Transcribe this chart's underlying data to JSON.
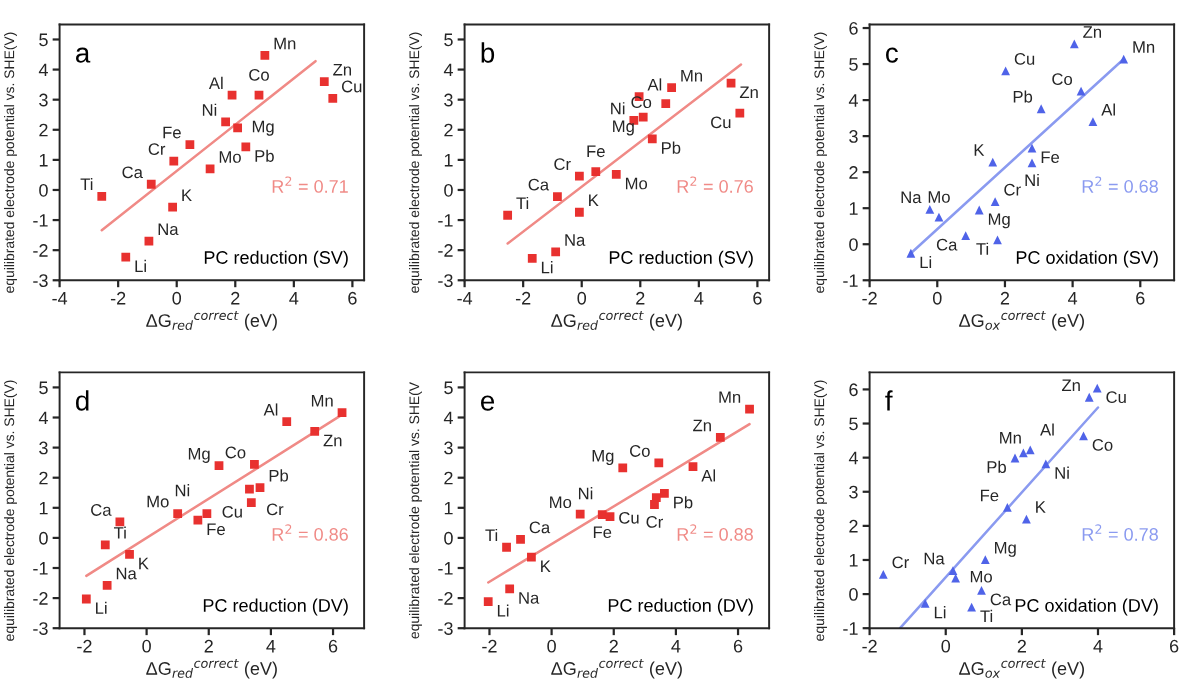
{
  "chart_data": [
    {
      "type": "scatter",
      "xlabel": "ΔG$_{red}$$^{correct}$ (eV)",
      "ylabel": "equilibrated electrode potential vs. SHE(V)",
      "xlim": [
        -4,
        6.4
      ],
      "xticks": [
        -4,
        -2,
        0,
        2,
        4,
        6
      ],
      "ylim": [
        -3,
        5.5
      ],
      "yticks": [
        -3,
        -2,
        -1,
        0,
        1,
        2,
        3,
        4,
        5
      ],
      "grid": false,
      "series": [
        {
          "type": "scatter",
          "marker": "square",
          "color": "#e8312f",
          "x": [
            3.01,
            1.89,
            2.81,
            5.04,
            5.33,
            1.67,
            2.08,
            0.45,
            2.36,
            -0.1,
            1.14,
            -0.87,
            -2.56,
            -0.14,
            -1.74,
            -0.95
          ],
          "values": [
            4.47,
            3.15,
            3.15,
            3.6,
            3.04,
            2.26,
            2.06,
            1.51,
            1.43,
            0.96,
            0.7,
            0.19,
            -0.21,
            -0.57,
            -2.23,
            -1.7
          ]
        },
        {
          "type": "line",
          "color": "#f08a86",
          "x": [
            -2.56,
            4.74
          ],
          "values": [
            -1.34,
            4.28
          ]
        }
      ],
      "annotations": [
        "a",
        "R$^{2}$ = 0.71",
        "PC reduction (SV)",
        {
          "text": "Mn",
          "x": 3.01,
          "y": 4.47
        },
        {
          "text": "Al",
          "x": 1.89,
          "y": 3.15
        },
        {
          "text": "Co",
          "x": 2.81,
          "y": 3.15
        },
        {
          "text": "Zn",
          "x": 5.04,
          "y": 3.6
        },
        {
          "text": "Cu",
          "x": 5.33,
          "y": 3.04
        },
        {
          "text": "Ni",
          "x": 1.67,
          "y": 2.26
        },
        {
          "text": "Mg",
          "x": 2.08,
          "y": 2.06
        },
        {
          "text": "Fe",
          "x": 0.45,
          "y": 1.51
        },
        {
          "text": "Pb",
          "x": 2.36,
          "y": 1.43
        },
        {
          "text": "Cr",
          "x": -0.1,
          "y": 0.96
        },
        {
          "text": "Mo",
          "x": 1.14,
          "y": 0.7
        },
        {
          "text": "Ca",
          "x": -0.87,
          "y": 0.19
        },
        {
          "text": "Ti",
          "x": -2.56,
          "y": -0.21
        },
        {
          "text": "K",
          "x": -0.14,
          "y": -0.57
        },
        {
          "text": "Li",
          "x": -1.74,
          "y": -2.23
        },
        {
          "text": "Na",
          "x": -0.95,
          "y": -1.7
        }
      ]
    },
    {
      "type": "scatter",
      "xlabel": "ΔG$_{red}$$^{correct}$ (eV)",
      "ylabel": "equilibrated electrode potential vs. SHE(V)",
      "xlim": [
        -4,
        6.4
      ],
      "xticks": [
        -4,
        -2,
        0,
        2,
        4,
        6
      ],
      "ylim": [
        -3,
        5.5
      ],
      "yticks": [
        -3,
        -2,
        -1,
        0,
        1,
        2,
        3,
        4,
        5
      ],
      "grid": false,
      "series": [
        {
          "type": "scatter",
          "marker": "square",
          "color": "#e8312f",
          "x": [
            -2.53,
            -0.83,
            -0.08,
            0.48,
            1.18,
            -0.08,
            -1.69,
            -0.89,
            1.96,
            3.07,
            2.87,
            1.78,
            2.1,
            2.41,
            5.1,
            5.4
          ],
          "values": [
            -0.84,
            -0.22,
            0.46,
            0.61,
            0.52,
            -0.74,
            -2.27,
            -2.06,
            3.1,
            3.4,
            2.87,
            2.31,
            2.42,
            1.7,
            3.55,
            2.55
          ]
        },
        {
          "type": "line",
          "color": "#f08a86",
          "x": [
            -2.53,
            5.44
          ],
          "values": [
            -1.78,
            4.17
          ]
        }
      ],
      "annotations": [
        "b",
        "R$^{2}$ = 0.76",
        "PC reduction (SV)",
        {
          "text": "Ti",
          "x": -2.53,
          "y": -0.84
        },
        {
          "text": "Ca",
          "x": -0.83,
          "y": -0.22
        },
        {
          "text": "Cr",
          "x": -0.08,
          "y": 0.46
        },
        {
          "text": "Fe",
          "x": 0.48,
          "y": 0.61
        },
        {
          "text": "Mo",
          "x": 1.18,
          "y": 0.52
        },
        {
          "text": "K",
          "x": -0.08,
          "y": -0.74
        },
        {
          "text": "Li",
          "x": -1.69,
          "y": -2.27
        },
        {
          "text": "Na",
          "x": -0.89,
          "y": -2.06
        },
        {
          "text": "Al",
          "x": 1.96,
          "y": 3.1
        },
        {
          "text": "Mn",
          "x": 3.07,
          "y": 3.4
        },
        {
          "text": "Co",
          "x": 2.87,
          "y": 2.87
        },
        {
          "text": "Ni",
          "x": 1.78,
          "y": 2.31
        },
        {
          "text": "Mg",
          "x": 2.1,
          "y": 2.42
        },
        {
          "text": "Pb",
          "x": 2.41,
          "y": 1.7
        },
        {
          "text": "Zn",
          "x": 5.1,
          "y": 3.55
        },
        {
          "text": "Cu",
          "x": 5.4,
          "y": 2.55
        }
      ]
    },
    {
      "type": "scatter",
      "xlabel": "ΔG$_{ox}$$^{correct}$ (eV)",
      "ylabel": "equilibrated electrode potential vs. SHE(V)",
      "xlim": [
        -2,
        7
      ],
      "xticks": [
        -2,
        0,
        2,
        4,
        6
      ],
      "ylim": [
        -1,
        6.1
      ],
      "yticks": [
        -1,
        0,
        1,
        2,
        3,
        4,
        5,
        6
      ],
      "grid": false,
      "series": [
        {
          "type": "scatter",
          "marker": "triangle",
          "color": "#4f63e8",
          "x": [
            4.05,
            5.51,
            2.02,
            4.25,
            3.07,
            4.6,
            2.8,
            1.64,
            2.8,
            -0.22,
            1.24,
            1.71,
            0.05,
            0.84,
            1.78,
            -0.78
          ],
          "values": [
            5.56,
            5.14,
            4.81,
            4.25,
            3.76,
            3.4,
            2.67,
            2.28,
            2.26,
            0.97,
            0.95,
            1.18,
            0.75,
            0.24,
            0.12,
            -0.25
          ]
        },
        {
          "type": "line",
          "color": "#8a9af0",
          "x": [
            -0.78,
            5.51
          ],
          "values": [
            -0.25,
            5.14
          ]
        }
      ],
      "annotations": [
        "c",
        "R$^{2}$ = 0.68",
        "PC oxidation (SV)",
        {
          "text": "Zn",
          "x": 4.05,
          "y": 5.56
        },
        {
          "text": "Mn",
          "x": 5.51,
          "y": 5.14
        },
        {
          "text": "Cu",
          "x": 2.02,
          "y": 4.81
        },
        {
          "text": "Co",
          "x": 4.25,
          "y": 4.25
        },
        {
          "text": "Pb",
          "x": 3.07,
          "y": 3.76
        },
        {
          "text": "Al",
          "x": 4.6,
          "y": 3.4
        },
        {
          "text": "Fe",
          "x": 2.8,
          "y": 2.67
        },
        {
          "text": "K",
          "x": 1.64,
          "y": 2.28
        },
        {
          "text": "Ni",
          "x": 2.8,
          "y": 2.26
        },
        {
          "text": "Na",
          "x": -0.22,
          "y": 0.97
        },
        {
          "text": "Mg",
          "x": 1.24,
          "y": 0.95
        },
        {
          "text": "Cr",
          "x": 1.71,
          "y": 1.18
        },
        {
          "text": "Mo",
          "x": 0.05,
          "y": 0.75
        },
        {
          "text": "Ca",
          "x": 0.84,
          "y": 0.24
        },
        {
          "text": "Ti",
          "x": 1.78,
          "y": 0.12
        },
        {
          "text": "Li",
          "x": -0.78,
          "y": -0.25
        }
      ]
    },
    {
      "type": "scatter",
      "xlabel": "ΔG$_{red}$$^{correct}$ (eV)",
      "ylabel": "equilibrated electrode potential vs. SHE(V)",
      "xlim": [
        -2.8,
        7
      ],
      "xticks": [
        -2,
        0,
        2,
        4,
        6
      ],
      "ylim": [
        -3,
        5.5
      ],
      "yticks": [
        -3,
        -2,
        -1,
        0,
        1,
        2,
        3,
        4,
        5
      ],
      "grid": false,
      "series": [
        {
          "type": "scatter",
          "marker": "square",
          "color": "#e8312f",
          "x": [
            6.29,
            4.51,
            5.41,
            2.33,
            3.47,
            3.31,
            3.65,
            3.37,
            1.0,
            1.94,
            1.65,
            -0.86,
            -1.33,
            -0.55,
            -1.27,
            -1.94
          ],
          "values": [
            4.16,
            3.86,
            3.54,
            2.4,
            2.44,
            1.62,
            1.67,
            1.17,
            0.81,
            0.81,
            0.59,
            0.53,
            -0.23,
            -0.55,
            -1.58,
            -2.03
          ]
        },
        {
          "type": "line",
          "color": "#f08a86",
          "x": [
            -1.94,
            6.33
          ],
          "values": [
            -1.26,
            4.12
          ]
        }
      ],
      "annotations": [
        "d",
        "R$^{2}$ = 0.86",
        "PC reduction (DV)",
        {
          "text": "Mn",
          "x": 6.29,
          "y": 4.16
        },
        {
          "text": "Al",
          "x": 4.51,
          "y": 3.86
        },
        {
          "text": "Zn",
          "x": 5.41,
          "y": 3.54
        },
        {
          "text": "Mg",
          "x": 2.33,
          "y": 2.4
        },
        {
          "text": "Co",
          "x": 3.47,
          "y": 2.44
        },
        {
          "text": "Cr",
          "x": 3.31,
          "y": 1.62
        },
        {
          "text": "Pb",
          "x": 3.65,
          "y": 1.67
        },
        {
          "text": "Cu",
          "x": 3.37,
          "y": 1.17
        },
        {
          "text": "Mo",
          "x": 1.0,
          "y": 0.81
        },
        {
          "text": "Ni",
          "x": 1.94,
          "y": 0.81
        },
        {
          "text": "Fe",
          "x": 1.65,
          "y": 0.59
        },
        {
          "text": "Ca",
          "x": -0.86,
          "y": 0.53
        },
        {
          "text": "Ti",
          "x": -1.33,
          "y": -0.23
        },
        {
          "text": "K",
          "x": -0.55,
          "y": -0.55
        },
        {
          "text": "Na",
          "x": -1.27,
          "y": -1.58
        },
        {
          "text": "Li",
          "x": -1.94,
          "y": -2.03
        }
      ]
    },
    {
      "type": "scatter",
      "xlabel": "ΔG$_{red}$$^{correct}$ (eV)",
      "ylabel": "equilibrated electrode potential vs. SHE(V",
      "xlim": [
        -2.8,
        7
      ],
      "xticks": [
        -2,
        0,
        2,
        4,
        6
      ],
      "ylim": [
        -3,
        5.5
      ],
      "yticks": [
        -3,
        -2,
        -1,
        0,
        1,
        2,
        3,
        4,
        5
      ],
      "grid": false,
      "series": [
        {
          "type": "scatter",
          "marker": "square",
          "color": "#e8312f",
          "x": [
            6.37,
            5.43,
            3.45,
            4.55,
            2.29,
            3.63,
            3.37,
            3.31,
            1.63,
            0.92,
            1.88,
            -1.0,
            -1.45,
            -0.65,
            -1.35,
            -2.04
          ],
          "values": [
            4.28,
            3.34,
            2.49,
            2.37,
            2.33,
            1.48,
            1.34,
            1.11,
            0.77,
            0.79,
            0.71,
            -0.05,
            -0.31,
            -0.64,
            -1.69,
            -2.12
          ]
        },
        {
          "type": "line",
          "color": "#f08a86",
          "x": [
            -2.04,
            6.37
          ],
          "values": [
            -1.48,
            3.78
          ]
        }
      ],
      "annotations": [
        "e",
        "R$^{2}$ = 0.88",
        "PC reduction (DV)",
        {
          "text": "Mn",
          "x": 6.37,
          "y": 4.28
        },
        {
          "text": "Zn",
          "x": 5.43,
          "y": 3.34
        },
        {
          "text": "Co",
          "x": 3.45,
          "y": 2.49
        },
        {
          "text": "Al",
          "x": 4.55,
          "y": 2.37
        },
        {
          "text": "Mg",
          "x": 2.29,
          "y": 2.33
        },
        {
          "text": "Pb",
          "x": 3.63,
          "y": 1.48
        },
        {
          "text": "Cu",
          "x": 3.37,
          "y": 1.34
        },
        {
          "text": "Cr",
          "x": 3.31,
          "y": 1.11
        },
        {
          "text": "Fe",
          "x": 1.63,
          "y": 0.77
        },
        {
          "text": "Mo",
          "x": 0.92,
          "y": 0.79
        },
        {
          "text": "Ni",
          "x": 1.88,
          "y": 0.71
        },
        {
          "text": "Ca",
          "x": -1.0,
          "y": -0.05
        },
        {
          "text": "Ti",
          "x": -1.45,
          "y": -0.31
        },
        {
          "text": "K",
          "x": -0.65,
          "y": -0.64
        },
        {
          "text": "Na",
          "x": -1.35,
          "y": -1.69
        },
        {
          "text": "Li",
          "x": -2.04,
          "y": -2.12
        }
      ]
    },
    {
      "type": "scatter",
      "xlabel": "ΔG$_{ox}$$^{correct}$ (eV)",
      "ylabel": "equilibrated electrode potential vs. SHE(V)",
      "xlim": [
        -2,
        6
      ],
      "xticks": [
        -2,
        0,
        2,
        4,
        6
      ],
      "ylim": [
        -1,
        6.5
      ],
      "yticks": [
        -1,
        0,
        1,
        2,
        3,
        4,
        5,
        6
      ],
      "grid": false,
      "series": [
        {
          "type": "scatter",
          "marker": "triangle",
          "color": "#4f63e8",
          "x": [
            3.98,
            3.77,
            3.62,
            2.22,
            2.04,
            1.82,
            2.63,
            1.62,
            2.12,
            1.04,
            0.19,
            0.26,
            0.94,
            -1.64,
            -0.54,
            0.68
          ],
          "values": [
            6.04,
            5.77,
            4.64,
            4.23,
            4.14,
            3.99,
            3.82,
            2.54,
            2.2,
            1.01,
            0.69,
            0.47,
            0.11,
            0.58,
            -0.27,
            -0.38
          ]
        },
        {
          "type": "line",
          "color": "#8a9af0",
          "x": [
            -1.2,
            4.0
          ],
          "values": [
            -1.0,
            5.47
          ]
        }
      ],
      "annotations": [
        "f",
        "R$^{2}$ = 0.78",
        "PC oxidation (DV)",
        {
          "text": "Cu",
          "x": 3.98,
          "y": 6.04
        },
        {
          "text": "Zn",
          "x": 3.77,
          "y": 5.77
        },
        {
          "text": "Co",
          "x": 3.62,
          "y": 4.64
        },
        {
          "text": "Mn",
          "x": 2.22,
          "y": 4.23
        },
        {
          "text": "Al",
          "x": 2.04,
          "y": 4.14
        },
        {
          "text": "Pb",
          "x": 1.82,
          "y": 3.99
        },
        {
          "text": "Ni",
          "x": 2.63,
          "y": 3.82
        },
        {
          "text": "Fe",
          "x": 1.62,
          "y": 2.54
        },
        {
          "text": "K",
          "x": 2.12,
          "y": 2.2
        },
        {
          "text": "Mg",
          "x": 1.04,
          "y": 1.01
        },
        {
          "text": "Na",
          "x": 0.19,
          "y": 0.69
        },
        {
          "text": "Mo",
          "x": 0.26,
          "y": 0.47
        },
        {
          "text": "Ca",
          "x": 0.94,
          "y": 0.11
        },
        {
          "text": "Cr",
          "x": -1.64,
          "y": 0.58
        },
        {
          "text": "Li",
          "x": -0.54,
          "y": -0.27
        },
        {
          "text": "Ti",
          "x": 0.68,
          "y": -0.38
        }
      ]
    }
  ]
}
